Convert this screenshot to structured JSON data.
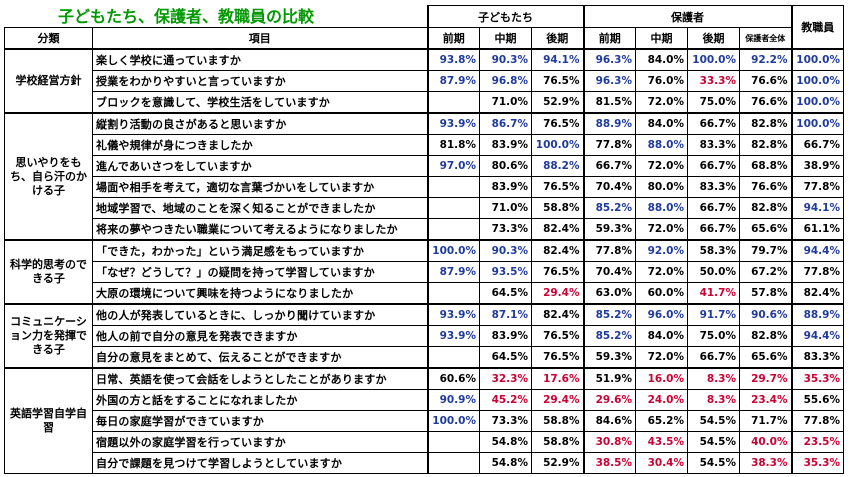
{
  "title": "子どもたち、保護者、教職員の比較",
  "headers": {
    "children": "子どもたち",
    "guardians": "保護者",
    "staff": "教職員",
    "category": "分類",
    "item": "項目",
    "early": "前期",
    "mid": "中期",
    "late": "後期",
    "guardians_late_all": "保護者全体"
  },
  "groups": [
    {
      "label": "学校経営方針",
      "rows": [
        {
          "item": "楽しく学校に通っていますか",
          "c1": "93.8%",
          "c2": "90.3%",
          "c3": "94.1%",
          "g1": "96.3%",
          "g2": "84.0%",
          "g3": "100.0%",
          "g4": "92.2%",
          "s": "100.0%",
          "colors": {
            "c1": "blue",
            "c2": "blue",
            "c3": "blue",
            "g1": "blue",
            "g2": "",
            "g3": "blue",
            "g4": "blue",
            "s": "blue"
          }
        },
        {
          "item": "授業をわかりやすいと言っていますか",
          "c1": "87.9%",
          "c2": "96.8%",
          "c3": "76.5%",
          "g1": "96.3%",
          "g2": "76.0%",
          "g3": "33.3%",
          "g4": "76.6%",
          "s": "100.0%",
          "colors": {
            "c1": "blue",
            "c2": "blue",
            "c3": "",
            "g1": "blue",
            "g2": "",
            "g3": "red",
            "g4": "",
            "s": "blue"
          }
        },
        {
          "item": "ブロックを意識して、学校生活をしていますか",
          "c1": "",
          "c2": "71.0%",
          "c3": "52.9%",
          "g1": "81.5%",
          "g2": "72.0%",
          "g3": "75.0%",
          "g4": "76.6%",
          "s": "100.0%",
          "colors": {
            "c1": "",
            "c2": "",
            "c3": "",
            "g1": "",
            "g2": "",
            "g3": "",
            "g4": "",
            "s": "blue"
          }
        }
      ]
    },
    {
      "label": "思いやりをもち、自ら汗のかける子",
      "rows": [
        {
          "item": "縦割り活動の良さがあると思いますか",
          "c1": "93.9%",
          "c2": "86.7%",
          "c3": "76.5%",
          "g1": "88.9%",
          "g2": "84.0%",
          "g3": "66.7%",
          "g4": "82.8%",
          "s": "100.0%",
          "colors": {
            "c1": "blue",
            "c2": "blue",
            "c3": "",
            "g1": "blue",
            "g2": "",
            "g3": "",
            "g4": "",
            "s": "blue"
          }
        },
        {
          "item": "礼儀や規律が身につきましたか",
          "c1": "81.8%",
          "c2": "83.9%",
          "c3": "100.0%",
          "g1": "77.8%",
          "g2": "88.0%",
          "g3": "83.3%",
          "g4": "82.8%",
          "s": "66.7%",
          "colors": {
            "c1": "",
            "c2": "",
            "c3": "blue",
            "g1": "",
            "g2": "blue",
            "g3": "",
            "g4": "",
            "s": ""
          }
        },
        {
          "item": "進んであいさつをしていますか",
          "c1": "97.0%",
          "c2": "80.6%",
          "c3": "88.2%",
          "g1": "66.7%",
          "g2": "72.0%",
          "g3": "66.7%",
          "g4": "68.8%",
          "s": "38.9%",
          "colors": {
            "c1": "blue",
            "c2": "",
            "c3": "blue",
            "g1": "",
            "g2": "",
            "g3": "",
            "g4": "",
            "s": ""
          }
        },
        {
          "item": "場面や相手を考えて，適切な言葉づかいをしていますか",
          "c1": "",
          "c2": "83.9%",
          "c3": "76.5%",
          "g1": "70.4%",
          "g2": "80.0%",
          "g3": "83.3%",
          "g4": "76.6%",
          "s": "77.8%",
          "colors": {
            "c1": "",
            "c2": "",
            "c3": "",
            "g1": "",
            "g2": "",
            "g3": "",
            "g4": "",
            "s": ""
          }
        },
        {
          "item": "地域学習で、地域のことを深く知ることができましたか",
          "c1": "",
          "c2": "71.0%",
          "c3": "58.8%",
          "g1": "85.2%",
          "g2": "88.0%",
          "g3": "66.7%",
          "g4": "82.8%",
          "s": "94.1%",
          "colors": {
            "c1": "",
            "c2": "",
            "c3": "",
            "g1": "blue",
            "g2": "blue",
            "g3": "",
            "g4": "",
            "s": "blue"
          }
        },
        {
          "item": "将来の夢やつきたい職業について考えるようになりましたか",
          "c1": "",
          "c2": "73.3%",
          "c3": "82.4%",
          "g1": "59.3%",
          "g2": "72.0%",
          "g3": "66.7%",
          "g4": "65.6%",
          "s": "61.1%",
          "colors": {
            "c1": "",
            "c2": "",
            "c3": "",
            "g1": "",
            "g2": "",
            "g3": "",
            "g4": "",
            "s": ""
          }
        }
      ]
    },
    {
      "label": "科学的思考のできる子",
      "rows": [
        {
          "item": "「できた，わかった」という満足感をもっていますか",
          "c1": "100.0%",
          "c2": "90.3%",
          "c3": "82.4%",
          "g1": "77.8%",
          "g2": "92.0%",
          "g3": "58.3%",
          "g4": "79.7%",
          "s": "94.4%",
          "colors": {
            "c1": "blue",
            "c2": "blue",
            "c3": "",
            "g1": "",
            "g2": "blue",
            "g3": "",
            "g4": "",
            "s": "blue"
          }
        },
        {
          "item": "「なぜ？どうして？」の疑問を持って学習していますか",
          "c1": "87.9%",
          "c2": "93.5%",
          "c3": "76.5%",
          "g1": "70.4%",
          "g2": "72.0%",
          "g3": "50.0%",
          "g4": "67.2%",
          "s": "77.8%",
          "colors": {
            "c1": "blue",
            "c2": "blue",
            "c3": "",
            "g1": "",
            "g2": "",
            "g3": "",
            "g4": "",
            "s": ""
          }
        },
        {
          "item": "大原の環境について興味を持つようになりましたか",
          "c1": "",
          "c2": "64.5%",
          "c3": "29.4%",
          "g1": "63.0%",
          "g2": "60.0%",
          "g3": "41.7%",
          "g4": "57.8%",
          "s": "82.4%",
          "colors": {
            "c1": "",
            "c2": "",
            "c3": "red",
            "g1": "",
            "g2": "",
            "g3": "red",
            "g4": "",
            "s": ""
          }
        }
      ]
    },
    {
      "label": "コミュニケーション力を発揮できる子",
      "rows": [
        {
          "item": "他の人が発表しているときに、しっかり聞けていますか",
          "c1": "93.9%",
          "c2": "87.1%",
          "c3": "82.4%",
          "g1": "85.2%",
          "g2": "96.0%",
          "g3": "91.7%",
          "g4": "90.6%",
          "s": "88.9%",
          "colors": {
            "c1": "blue",
            "c2": "blue",
            "c3": "",
            "g1": "blue",
            "g2": "blue",
            "g3": "blue",
            "g4": "blue",
            "s": "blue"
          }
        },
        {
          "item": "他人の前で自分の意見を発表できますか",
          "c1": "93.9%",
          "c2": "83.9%",
          "c3": "76.5%",
          "g1": "85.2%",
          "g2": "84.0%",
          "g3": "75.0%",
          "g4": "82.8%",
          "s": "94.4%",
          "colors": {
            "c1": "blue",
            "c2": "",
            "c3": "",
            "g1": "blue",
            "g2": "",
            "g3": "",
            "g4": "",
            "s": "blue"
          }
        },
        {
          "item": "自分の意見をまとめて、伝えることができますか",
          "c1": "",
          "c2": "64.5%",
          "c3": "76.5%",
          "g1": "59.3%",
          "g2": "72.0%",
          "g3": "66.7%",
          "g4": "65.6%",
          "s": "83.3%",
          "colors": {
            "c1": "",
            "c2": "",
            "c3": "",
            "g1": "",
            "g2": "",
            "g3": "",
            "g4": "",
            "s": ""
          }
        }
      ]
    },
    {
      "label": "英語学習自学自習",
      "rows": [
        {
          "item": "日常、英語を使って会話をしようとしたことがありますか",
          "c1": "60.6%",
          "c2": "32.3%",
          "c3": "17.6%",
          "g1": "51.9%",
          "g2": "16.0%",
          "g3": "8.3%",
          "g4": "29.7%",
          "s": "35.3%",
          "colors": {
            "c1": "",
            "c2": "red",
            "c3": "red",
            "g1": "",
            "g2": "red",
            "g3": "red",
            "g4": "red",
            "s": "red"
          }
        },
        {
          "item": "外国の方と話をすることになれましたか",
          "c1": "90.9%",
          "c2": "45.2%",
          "c3": "29.4%",
          "g1": "29.6%",
          "g2": "24.0%",
          "g3": "8.3%",
          "g4": "23.4%",
          "s": "55.6%",
          "colors": {
            "c1": "blue",
            "c2": "red",
            "c3": "red",
            "g1": "red",
            "g2": "red",
            "g3": "red",
            "g4": "red",
            "s": ""
          }
        },
        {
          "item": "毎日の家庭学習ができていますか",
          "c1": "100.0%",
          "c2": "73.3%",
          "c3": "58.8%",
          "g1": "84.6%",
          "g2": "65.2%",
          "g3": "54.5%",
          "g4": "71.7%",
          "s": "77.8%",
          "colors": {
            "c1": "blue",
            "c2": "",
            "c3": "",
            "g1": "",
            "g2": "",
            "g3": "",
            "g4": "",
            "s": ""
          }
        },
        {
          "item": "宿題以外の家庭学習を行っていますか",
          "c1": "",
          "c2": "54.8%",
          "c3": "58.8%",
          "g1": "30.8%",
          "g2": "43.5%",
          "g3": "54.5%",
          "g4": "40.0%",
          "s": "23.5%",
          "colors": {
            "c1": "",
            "c2": "",
            "c3": "",
            "g1": "red",
            "g2": "red",
            "g3": "",
            "g4": "red",
            "s": "red"
          }
        },
        {
          "item": "自分で課題を見つけて学習しようとしていますか",
          "c1": "",
          "c2": "54.8%",
          "c3": "52.9%",
          "g1": "38.5%",
          "g2": "30.4%",
          "g3": "54.5%",
          "g4": "38.3%",
          "s": "35.3%",
          "colors": {
            "c1": "",
            "c2": "",
            "c3": "",
            "g1": "red",
            "g2": "red",
            "g3": "",
            "g4": "red",
            "s": "red"
          }
        }
      ]
    }
  ]
}
